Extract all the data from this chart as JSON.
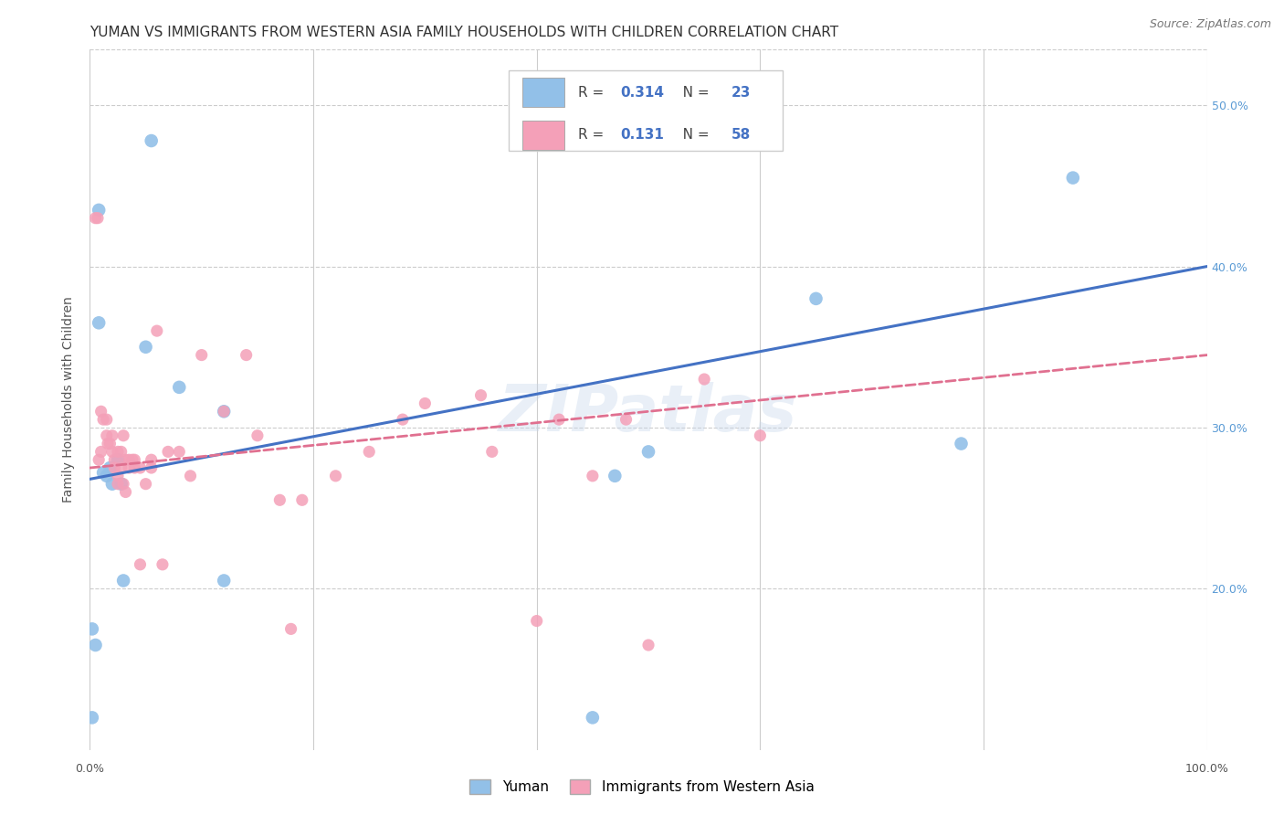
{
  "title": "YUMAN VS IMMIGRANTS FROM WESTERN ASIA FAMILY HOUSEHOLDS WITH CHILDREN CORRELATION CHART",
  "source": "Source: ZipAtlas.com",
  "ylabel": "Family Households with Children",
  "xlim": [
    0,
    1.0
  ],
  "ylim": [
    0.1,
    0.535
  ],
  "xticks": [
    0.0,
    0.2,
    0.4,
    0.6,
    0.8,
    1.0
  ],
  "yticks": [
    0.2,
    0.3,
    0.4,
    0.5
  ],
  "watermark": "ZIPatlas",
  "legend_labels": [
    "Yuman",
    "Immigrants from Western Asia"
  ],
  "blue_scatter_x": [
    0.002,
    0.008,
    0.008,
    0.012,
    0.015,
    0.018,
    0.02,
    0.025,
    0.028,
    0.03,
    0.05,
    0.055,
    0.08,
    0.12,
    0.47,
    0.5,
    0.65,
    0.78,
    0.88,
    0.005,
    0.002,
    0.45,
    0.12
  ],
  "blue_scatter_y": [
    0.175,
    0.435,
    0.365,
    0.272,
    0.27,
    0.275,
    0.265,
    0.28,
    0.265,
    0.205,
    0.35,
    0.478,
    0.325,
    0.31,
    0.27,
    0.285,
    0.38,
    0.29,
    0.455,
    0.165,
    0.12,
    0.12,
    0.205
  ],
  "pink_scatter_x": [
    0.005,
    0.007,
    0.008,
    0.01,
    0.01,
    0.012,
    0.015,
    0.015,
    0.016,
    0.018,
    0.02,
    0.02,
    0.022,
    0.022,
    0.025,
    0.025,
    0.025,
    0.028,
    0.028,
    0.03,
    0.03,
    0.032,
    0.032,
    0.035,
    0.035,
    0.038,
    0.04,
    0.04,
    0.045,
    0.045,
    0.05,
    0.055,
    0.055,
    0.06,
    0.065,
    0.07,
    0.08,
    0.09,
    0.1,
    0.12,
    0.14,
    0.15,
    0.17,
    0.18,
    0.19,
    0.22,
    0.25,
    0.28,
    0.3,
    0.35,
    0.36,
    0.4,
    0.42,
    0.45,
    0.48,
    0.5,
    0.55,
    0.6
  ],
  "pink_scatter_y": [
    0.43,
    0.43,
    0.28,
    0.285,
    0.31,
    0.305,
    0.305,
    0.295,
    0.29,
    0.29,
    0.295,
    0.285,
    0.28,
    0.275,
    0.285,
    0.27,
    0.265,
    0.275,
    0.285,
    0.295,
    0.265,
    0.28,
    0.26,
    0.28,
    0.275,
    0.28,
    0.275,
    0.28,
    0.215,
    0.275,
    0.265,
    0.275,
    0.28,
    0.36,
    0.215,
    0.285,
    0.285,
    0.27,
    0.345,
    0.31,
    0.345,
    0.295,
    0.255,
    0.175,
    0.255,
    0.27,
    0.285,
    0.305,
    0.315,
    0.32,
    0.285,
    0.18,
    0.305,
    0.27,
    0.305,
    0.165,
    0.33,
    0.295
  ],
  "blue_line_x": [
    0.0,
    1.0
  ],
  "blue_line_y": [
    0.268,
    0.4
  ],
  "pink_line_x": [
    0.0,
    1.0
  ],
  "pink_line_y": [
    0.275,
    0.345
  ],
  "dot_color_blue": "#92c0e8",
  "dot_color_pink": "#f4a0b8",
  "line_color_blue": "#4472c4",
  "line_color_pink": "#e07090",
  "background_color": "#ffffff",
  "grid_color": "#cccccc",
  "title_color": "#333333",
  "title_fontsize": 11,
  "axis_label_color": "#555555",
  "tick_color_right": "#5b9bd5",
  "watermark_color": "#c8d8ec",
  "watermark_alpha": 0.4,
  "R_blue": "0.314",
  "N_blue": "23",
  "R_pink": "0.131",
  "N_pink": "58"
}
